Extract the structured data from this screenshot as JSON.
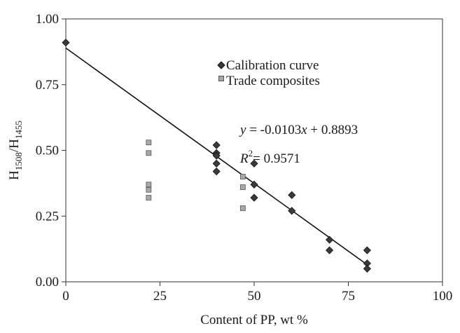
{
  "chart_data": {
    "type": "scatter",
    "xlabel": "Content of PP, wt %",
    "ylabel": {
      "base": "H",
      "sub1": "1508",
      "sep": "/H",
      "sub2": "1455"
    },
    "xlim": [
      0,
      100
    ],
    "ylim": [
      0,
      1
    ],
    "x_ticks": [
      "0",
      "25",
      "50",
      "75",
      "100"
    ],
    "x_tick_values": [
      0,
      25,
      50,
      75,
      100
    ],
    "y_ticks": [
      "0.00",
      "0.25",
      "0.50",
      "0.75",
      "1.00"
    ],
    "y_tick_values": [
      0,
      0.25,
      0.5,
      0.75,
      1.0
    ],
    "grid": false,
    "legend_position": "top-center",
    "series": [
      {
        "name": "Calibration curve",
        "marker": "diamond",
        "color": "#3a3a3a",
        "points": [
          [
            0,
            0.91
          ],
          [
            40,
            0.52
          ],
          [
            40,
            0.49
          ],
          [
            40,
            0.48
          ],
          [
            40,
            0.45
          ],
          [
            40,
            0.42
          ],
          [
            50,
            0.45
          ],
          [
            50,
            0.37
          ],
          [
            50,
            0.32
          ],
          [
            60,
            0.33
          ],
          [
            60,
            0.27
          ],
          [
            70,
            0.16
          ],
          [
            70,
            0.12
          ],
          [
            80,
            0.12
          ],
          [
            80,
            0.07
          ],
          [
            80,
            0.05
          ]
        ]
      },
      {
        "name": "Trade composites",
        "marker": "square",
        "color": "#a8a8a8",
        "points": [
          [
            22,
            0.53
          ],
          [
            22,
            0.49
          ],
          [
            22,
            0.37
          ],
          [
            22,
            0.35
          ],
          [
            22,
            0.32
          ],
          [
            47,
            0.4
          ],
          [
            47,
            0.36
          ],
          [
            47,
            0.28
          ]
        ]
      }
    ],
    "trendline": {
      "slope": -0.0103,
      "intercept": 0.8893,
      "x_range": [
        0,
        80
      ],
      "equation": {
        "y": "y",
        "rest": " = -0.0103",
        "x": "x",
        "tail": " + 0.8893"
      },
      "r2": {
        "r": "R",
        "sup": "2",
        "value": "= 0.9571"
      }
    }
  }
}
